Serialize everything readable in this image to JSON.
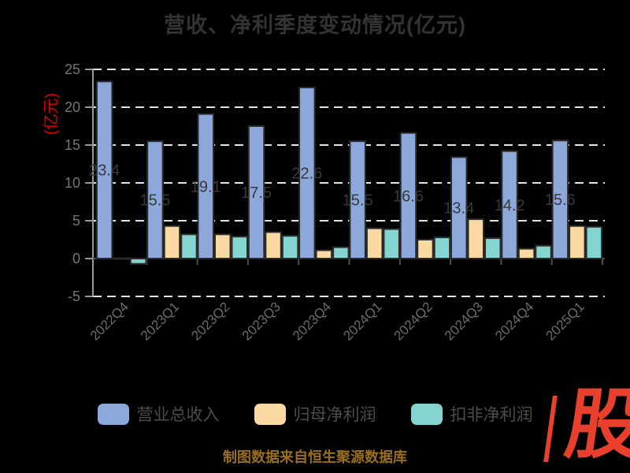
{
  "chart_data": {
    "type": "bar",
    "title": "营收、净利季度变动情况(亿元)",
    "ylabel": "(亿元)",
    "ylim": [
      -5,
      25
    ],
    "yticks": [
      25,
      20,
      15,
      10,
      5,
      0,
      -5
    ],
    "grid": "dashed horizontal lines at every tick except 0; solid baseline at 0",
    "legend_position": "bottom",
    "categories": [
      "2022Q4",
      "2023Q1",
      "2023Q2",
      "2023Q3",
      "2023Q4",
      "2024Q1",
      "2024Q2",
      "2024Q3",
      "2024Q4",
      "2025Q1"
    ],
    "series": [
      {
        "name": "营业总收入",
        "color": "#8DA9DB",
        "values": [
          23.4,
          15.5,
          19.1,
          17.5,
          22.6,
          15.5,
          16.6,
          13.4,
          14.2,
          15.6
        ],
        "show_labels": true
      },
      {
        "name": "归母净利润",
        "color": "#FBD9A3",
        "values": [
          0.05,
          4.3,
          3.2,
          3.5,
          1.1,
          4.0,
          2.5,
          5.2,
          1.3,
          4.3
        ],
        "show_labels": false
      },
      {
        "name": "扣非净利润",
        "color": "#84D4CF",
        "values": [
          -0.7,
          3.2,
          2.9,
          3.0,
          1.5,
          3.9,
          2.8,
          2.7,
          1.7,
          4.2
        ],
        "show_labels": false
      }
    ],
    "source_note": "制图数据来自恒生聚源数据库",
    "watermark": "股",
    "colors": {
      "background": "#000000",
      "title_text": "#333333",
      "axis_tick_text": "#757575",
      "bar_value_text": "#383838",
      "gridline": "#e5e5e5",
      "zero_baseline": "#4f4f4f",
      "y_spine": "#9a9a9a",
      "ylabel_text": "#dd0000",
      "source_text": "#9a6f1c",
      "watermark_red": "#e8402c"
    }
  }
}
